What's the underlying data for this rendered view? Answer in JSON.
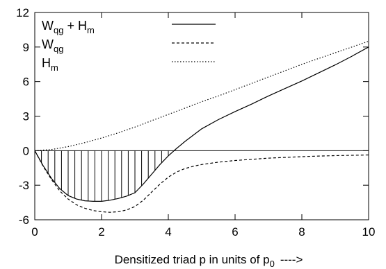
{
  "chart_data": {
    "type": "line",
    "title": "",
    "xlabel": "Densitized triad p in units of p",
    "xlabel_sub": "0",
    "xlabel_arrow": "---->",
    "ylabel": "",
    "xlim": [
      0,
      10
    ],
    "ylim": [
      -6,
      12
    ],
    "x_ticks": [
      "0",
      "2",
      "4",
      "6",
      "8",
      "10"
    ],
    "y_ticks": [
      "12",
      "9",
      "6",
      "3",
      "0",
      "-3",
      "-6"
    ],
    "legend_position": "top-left",
    "hatch": {
      "series": "Wqg + Hm",
      "between": "curve and y=0",
      "x_range": [
        0,
        4.3
      ],
      "style": "vertical lines"
    },
    "series": [
      {
        "name": "Wqg + Hm",
        "name_parts": [
          "W",
          "qg",
          " + H",
          "m"
        ],
        "style": "solid",
        "x": [
          0,
          0.25,
          0.5,
          0.75,
          1.0,
          1.25,
          1.5,
          1.75,
          2.0,
          2.25,
          2.5,
          2.75,
          3.0,
          3.25,
          3.5,
          3.75,
          4.0,
          4.25,
          4.5,
          4.75,
          5.0,
          5.5,
          6.0,
          6.5,
          7.0,
          7.5,
          8.0,
          8.5,
          9.0,
          9.5,
          10.0
        ],
        "y": [
          0,
          -1.3,
          -2.4,
          -3.3,
          -3.9,
          -4.2,
          -4.35,
          -4.4,
          -4.4,
          -4.3,
          -4.15,
          -3.95,
          -3.65,
          -2.9,
          -2.05,
          -1.2,
          -0.45,
          0.2,
          0.8,
          1.35,
          1.9,
          2.7,
          3.4,
          4.05,
          4.75,
          5.4,
          6.05,
          6.75,
          7.45,
          8.2,
          9.0
        ]
      },
      {
        "name": "Wqg",
        "name_parts": [
          "W",
          "qg",
          "",
          ""
        ],
        "style": "dashed",
        "x": [
          0,
          0.25,
          0.5,
          0.75,
          1.0,
          1.25,
          1.5,
          1.75,
          2.0,
          2.25,
          2.5,
          2.75,
          3.0,
          3.25,
          3.5,
          3.75,
          4.0,
          4.25,
          4.5,
          4.75,
          5.0,
          5.5,
          6.0,
          6.5,
          7.0,
          7.5,
          8.0,
          8.5,
          9.0,
          9.5,
          10.0
        ],
        "y": [
          0,
          -1.35,
          -2.5,
          -3.5,
          -4.2,
          -4.7,
          -5.0,
          -5.2,
          -5.3,
          -5.35,
          -5.3,
          -5.15,
          -4.85,
          -4.3,
          -3.6,
          -2.9,
          -2.3,
          -1.85,
          -1.55,
          -1.35,
          -1.2,
          -1.0,
          -0.85,
          -0.75,
          -0.65,
          -0.58,
          -0.52,
          -0.47,
          -0.43,
          -0.4,
          -0.37
        ]
      },
      {
        "name": "Hm",
        "name_parts": [
          "H",
          "m",
          "",
          ""
        ],
        "style": "dotted",
        "x": [
          0,
          0.5,
          1.0,
          1.5,
          2.0,
          2.5,
          3.0,
          3.5,
          4.0,
          4.5,
          5.0,
          5.5,
          6.0,
          6.5,
          7.0,
          7.5,
          8.0,
          8.5,
          9.0,
          9.5,
          10.0
        ],
        "y": [
          0,
          0.1,
          0.35,
          0.7,
          1.1,
          1.55,
          2.05,
          2.6,
          3.15,
          3.7,
          4.25,
          4.75,
          5.3,
          5.85,
          6.4,
          6.95,
          7.5,
          8.0,
          8.5,
          9.0,
          9.5
        ]
      }
    ]
  }
}
